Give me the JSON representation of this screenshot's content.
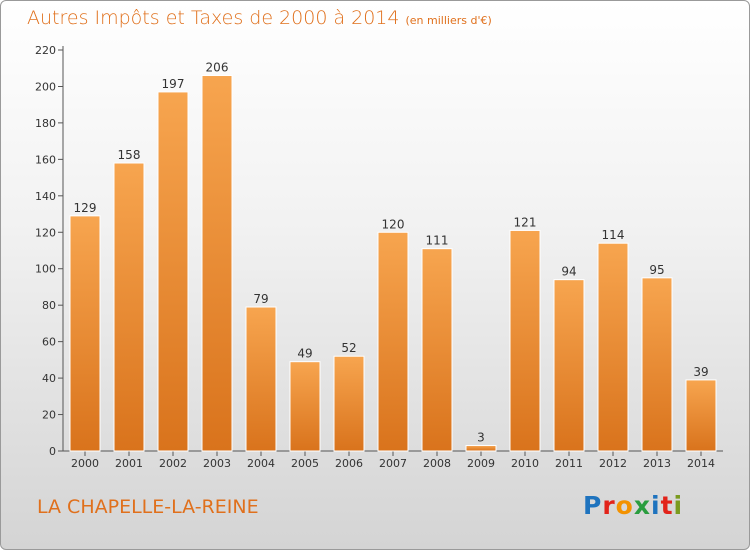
{
  "chart_data": {
    "type": "bar",
    "title": "Autres Impôts et Taxes de 2000 à 2014",
    "unit_note": "(en milliers d'€)",
    "categories": [
      "2000",
      "2001",
      "2002",
      "2003",
      "2004",
      "2005",
      "2006",
      "2007",
      "2008",
      "2009",
      "2010",
      "2011",
      "2012",
      "2013",
      "2014"
    ],
    "values": [
      129,
      158,
      197,
      206,
      79,
      49,
      52,
      120,
      111,
      3,
      121,
      94,
      114,
      95,
      39
    ],
    "ylim": [
      0,
      220
    ],
    "yticks": [
      0,
      20,
      40,
      60,
      80,
      100,
      120,
      140,
      160,
      180,
      200,
      220
    ],
    "grid": false,
    "bar_color_top": "#f7a54f",
    "bar_color_bottom": "#d9731c"
  },
  "place_name": "LA CHAPELLE-LA-REINE",
  "brand": {
    "text": "Proxiti",
    "letter_colors": [
      "#1e73be",
      "#e2231a",
      "#f39200",
      "#2a9d3f",
      "#1e73be",
      "#e2231a",
      "#7a9b1e"
    ]
  },
  "colors": {
    "accent": "#e0701c",
    "axis": "#555555"
  }
}
